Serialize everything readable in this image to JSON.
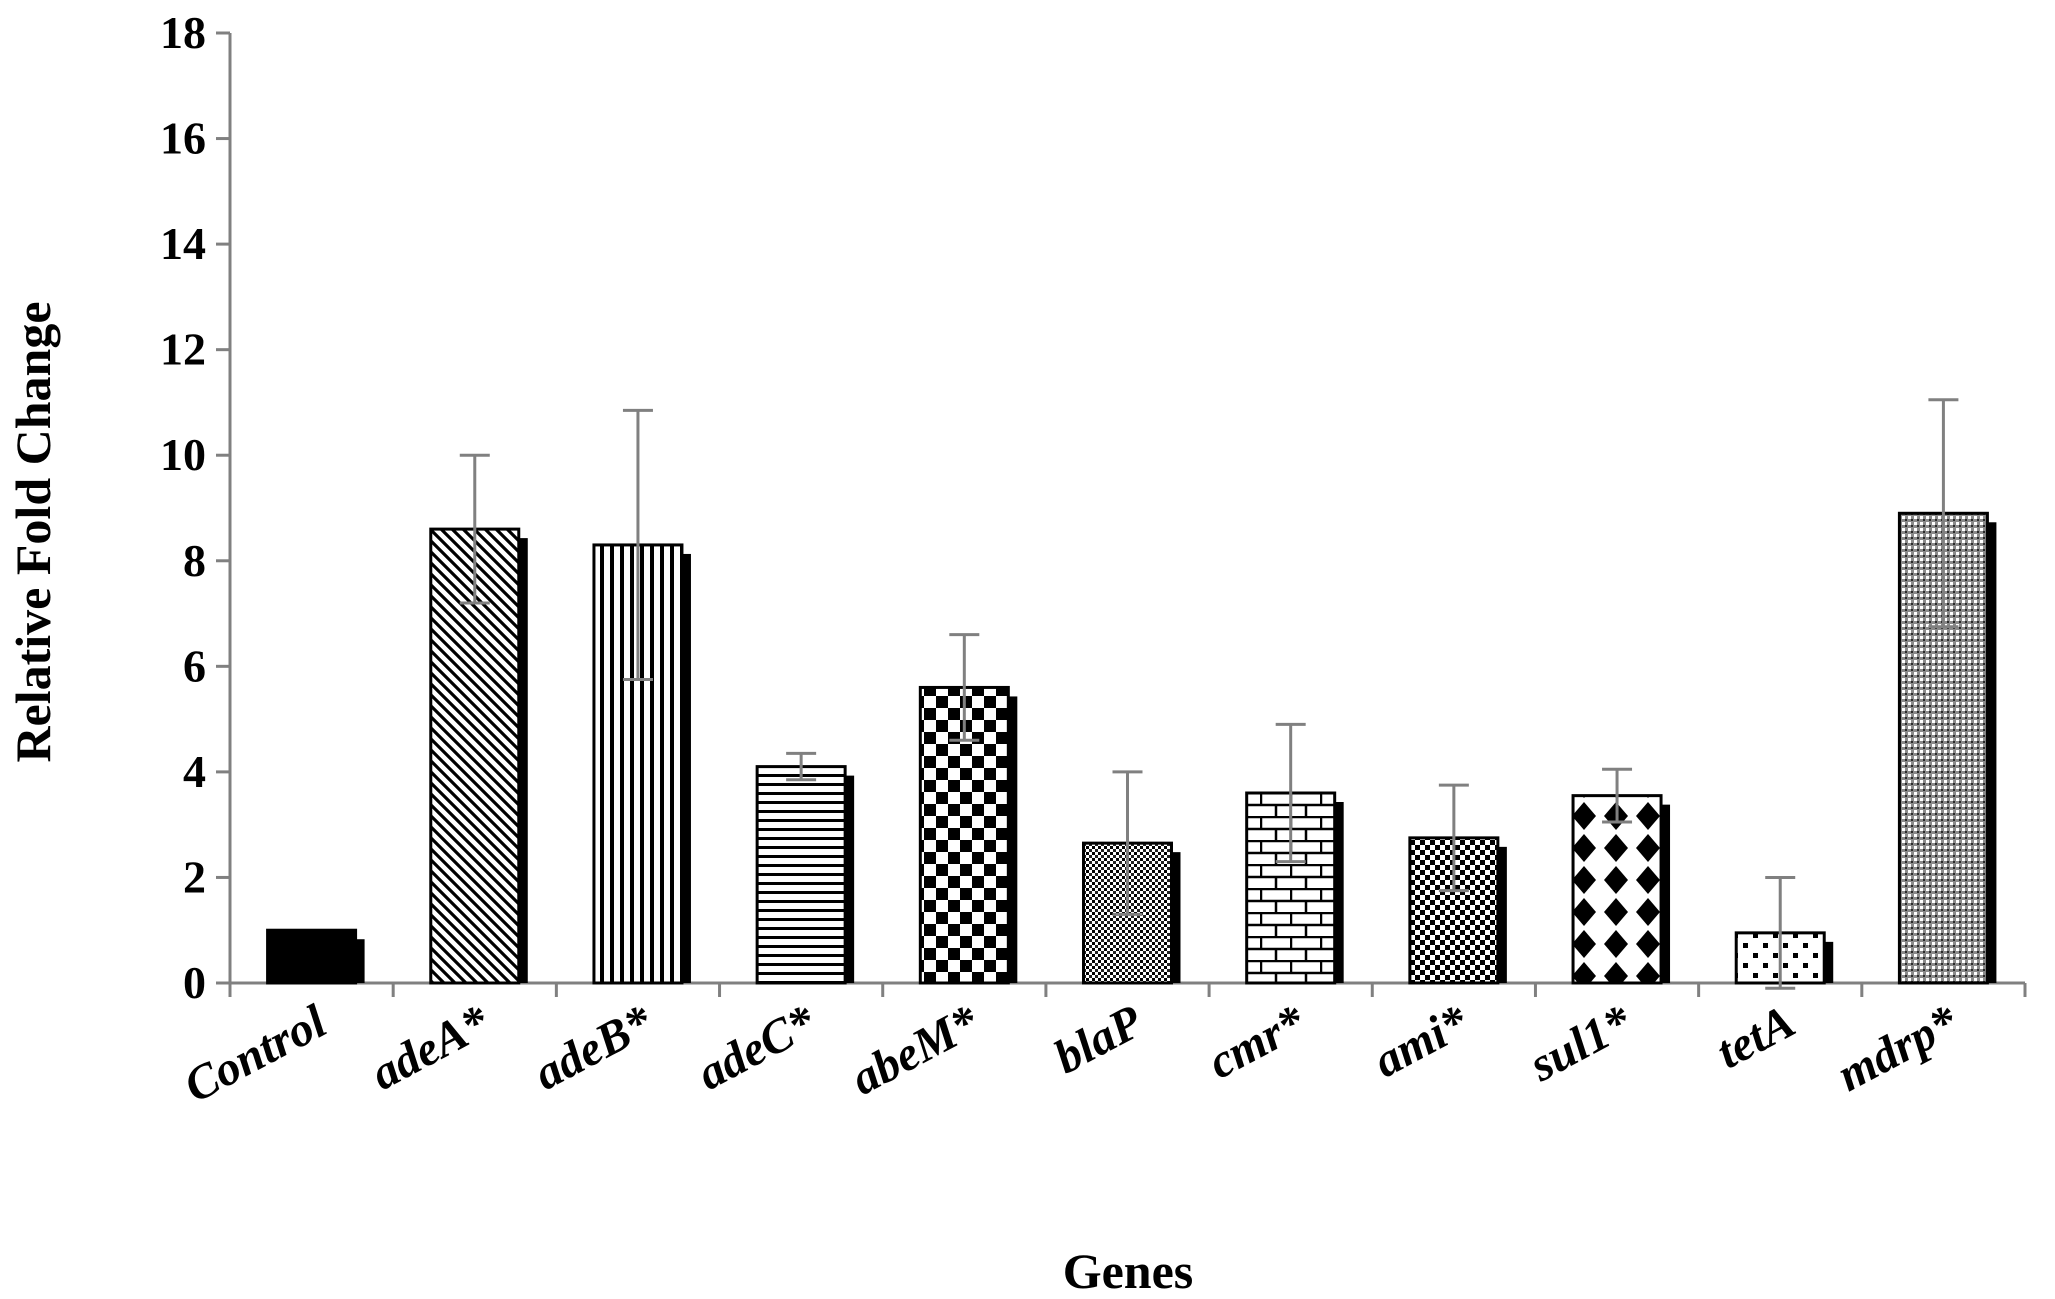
{
  "chart_data": {
    "type": "bar",
    "title": "",
    "xlabel": "Genes",
    "ylabel": "Relative Fold Change",
    "ylim": [
      0,
      18
    ],
    "yticks": [
      "0",
      "2",
      "4",
      "6",
      "8",
      "10",
      "12",
      "14",
      "16",
      "18"
    ],
    "grid": false,
    "legend": "none",
    "categories": [
      "Control",
      "adeA*",
      "adeB*",
      "adeC*",
      "abeM*",
      "blaP",
      "cmr*",
      "ami*",
      "sul1*",
      "tetA",
      "mdrp*"
    ],
    "values": [
      1.0,
      8.6,
      8.3,
      4.1,
      5.6,
      2.65,
      3.6,
      2.75,
      3.55,
      0.95,
      8.9
    ],
    "errors": [
      0,
      1.4,
      2.55,
      0.25,
      1.0,
      1.35,
      1.3,
      1.0,
      0.5,
      1.05,
      2.15
    ],
    "patterns": [
      "solid",
      "diagonal",
      "vertical",
      "horizontal",
      "checker",
      "dots",
      "brick",
      "fine-checker",
      "diamond",
      "sparse-dots",
      "crosshatch"
    ],
    "colors": {
      "bar_edge": "#000000",
      "bar_shadow": "#000000",
      "error_bar": "#808080",
      "axis": "#808080"
    }
  }
}
